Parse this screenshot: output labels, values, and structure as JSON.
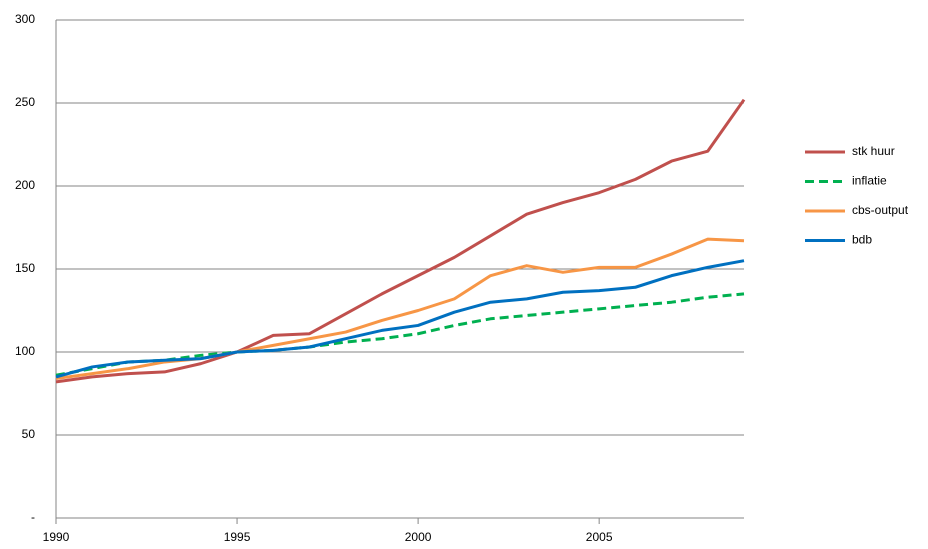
{
  "chart_data": {
    "type": "line",
    "x": [
      1990,
      1991,
      1992,
      1993,
      1994,
      1995,
      1996,
      1997,
      1998,
      1999,
      2000,
      2001,
      2002,
      2003,
      2004,
      2005,
      2006,
      2007,
      2008,
      2009
    ],
    "xlim": [
      1990,
      2009
    ],
    "xticks": [
      1990,
      1995,
      2000,
      2005
    ],
    "ylim": [
      0,
      300
    ],
    "yticks": [
      {
        "value": 0,
        "label": "-"
      },
      50,
      100,
      150,
      200,
      250,
      300
    ],
    "grid": true,
    "legend": "right",
    "series": [
      {
        "name": "stk huur",
        "color": "#c0504d",
        "dashed": false,
        "values": [
          82,
          85,
          87,
          88,
          93,
          100,
          110,
          111,
          123,
          135,
          146,
          157,
          170,
          183,
          190,
          196,
          204,
          215,
          221,
          252
        ]
      },
      {
        "name": "inflatie",
        "color": "#00b050",
        "dashed": true,
        "values": [
          86,
          90,
          94,
          95,
          98,
          100,
          101,
          103,
          106,
          108,
          111,
          116,
          120,
          122,
          124,
          126,
          128,
          130,
          133,
          135
        ]
      },
      {
        "name": "cbs-output",
        "color": "#f79646",
        "dashed": false,
        "values": [
          84,
          87,
          90,
          94,
          96,
          100,
          104,
          108,
          112,
          119,
          125,
          132,
          146,
          152,
          148,
          151,
          151,
          159,
          168,
          167
        ]
      },
      {
        "name": "bdb",
        "color": "#0070c0",
        "dashed": false,
        "values": [
          85,
          91,
          94,
          95,
          96,
          100,
          101,
          103,
          108,
          113,
          116,
          124,
          130,
          132,
          136,
          137,
          139,
          146,
          151,
          155
        ]
      }
    ]
  }
}
